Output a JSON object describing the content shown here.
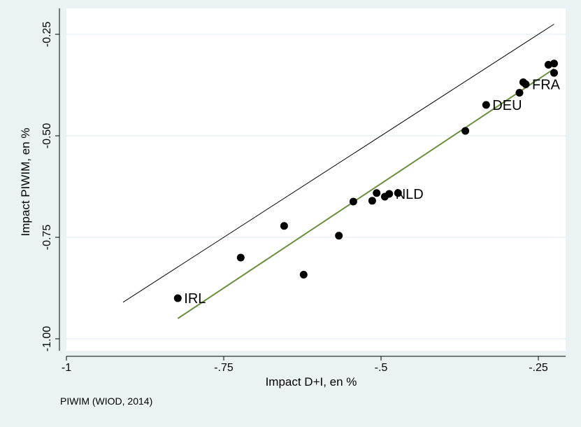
{
  "chart_data": {
    "type": "scatter",
    "xlabel": "Impact D+I, en %",
    "ylabel": "Impact PIWIM, en %",
    "note": "PIWIM (WIOD, 2014)",
    "xlim": [
      -1.0,
      -0.2
    ],
    "ylim": [
      -1.0,
      -0.2
    ],
    "x_ticks": [
      {
        "value": -1.0,
        "label": "-1"
      },
      {
        "value": -0.75,
        "label": "-.75"
      },
      {
        "value": -0.5,
        "label": "-.5"
      },
      {
        "value": -0.25,
        "label": "-.25"
      }
    ],
    "y_ticks": [
      {
        "value": -1.0,
        "label": "-1.00"
      },
      {
        "value": -0.75,
        "label": "-0.75"
      },
      {
        "value": -0.5,
        "label": "-0.50"
      },
      {
        "value": -0.25,
        "label": "-0.25"
      }
    ],
    "grid": "horizontal",
    "points": [
      {
        "x": -0.823,
        "y": -0.9,
        "label": "IRL"
      },
      {
        "x": -0.723,
        "y": -0.8,
        "label": ""
      },
      {
        "x": -0.654,
        "y": -0.722,
        "label": ""
      },
      {
        "x": -0.623,
        "y": -0.842,
        "label": ""
      },
      {
        "x": -0.567,
        "y": -0.746,
        "label": ""
      },
      {
        "x": -0.544,
        "y": -0.662,
        "label": ""
      },
      {
        "x": -0.514,
        "y": -0.66,
        "label": ""
      },
      {
        "x": -0.507,
        "y": -0.641,
        "label": ""
      },
      {
        "x": -0.494,
        "y": -0.65,
        "label": ""
      },
      {
        "x": -0.487,
        "y": -0.643,
        "label": "NLD"
      },
      {
        "x": -0.473,
        "y": -0.641,
        "label": ""
      },
      {
        "x": -0.366,
        "y": -0.488,
        "label": ""
      },
      {
        "x": -0.333,
        "y": -0.424,
        "label": "DEU"
      },
      {
        "x": -0.28,
        "y": -0.394,
        "label": ""
      },
      {
        "x": -0.274,
        "y": -0.368,
        "label": ""
      },
      {
        "x": -0.27,
        "y": -0.373,
        "label": "FRA"
      },
      {
        "x": -0.234,
        "y": -0.325,
        "label": ""
      },
      {
        "x": -0.225,
        "y": -0.322,
        "label": ""
      },
      {
        "x": -0.225,
        "y": -0.345,
        "label": ""
      }
    ],
    "lines": [
      {
        "kind": "45-degree line",
        "color": "#000000",
        "x": [
          -0.91,
          -0.225
        ],
        "y": [
          -0.91,
          -0.225
        ]
      },
      {
        "kind": "fitted line",
        "color": "#6b8e3d",
        "x": [
          -0.823,
          -0.225
        ],
        "y": [
          -0.95,
          -0.335
        ]
      }
    ]
  }
}
